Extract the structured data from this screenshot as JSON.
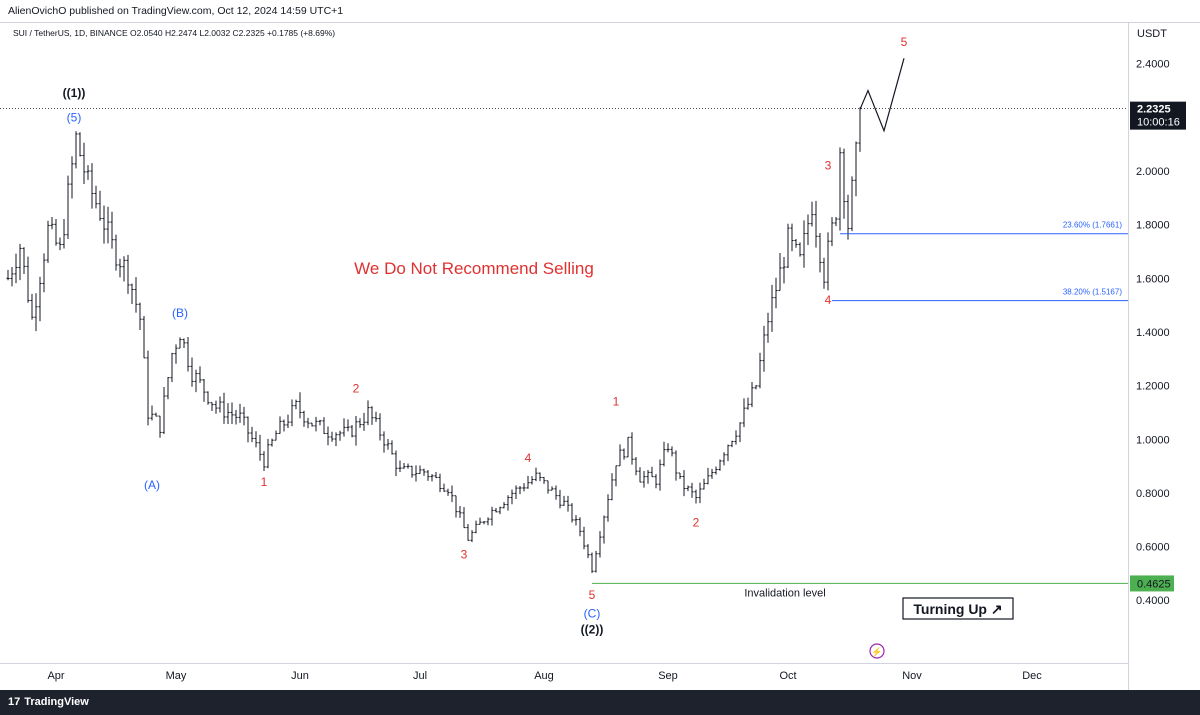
{
  "header": {
    "published_text": "AlienOvichO published on TradingView.com, Oct 12, 2024 14:59 UTC+1"
  },
  "symbol_info": "SUI / TetherUS, 1D, BINANCE  O2.0540  H2.2474  L2.0032  C2.2325  +0.1785 (+8.69%)",
  "footer": {
    "logo_text": "TradingView",
    "logo_icon": "tradingview-logo-icon"
  },
  "colors": {
    "wave_red": "#e03131",
    "wave_blue": "#2962ff",
    "fib_line": "#2962ff",
    "invalidation": "#4caf50",
    "price_label_bg": "#131722"
  },
  "chart_data": {
    "type": "ohlc",
    "title": "SUI / TetherUS, 1D, BINANCE",
    "currency": "USDT",
    "ylim": [
      0.36,
      2.55
    ],
    "y_ticks": [
      {
        "value": 2.4,
        "label": "2.4000"
      },
      {
        "value": 2.0,
        "label": "2.0000"
      },
      {
        "value": 1.8,
        "label": "1.8000"
      },
      {
        "value": 1.6,
        "label": "1.6000"
      },
      {
        "value": 1.4,
        "label": "1.4000"
      },
      {
        "value": 1.2,
        "label": "1.2000"
      },
      {
        "value": 1.0,
        "label": "1.0000"
      },
      {
        "value": 0.8,
        "label": "0.8000"
      },
      {
        "value": 0.6,
        "label": "0.6000"
      },
      {
        "value": 0.4,
        "label": "0.4000"
      }
    ],
    "x_ticks": [
      {
        "day": 12,
        "label": "Apr"
      },
      {
        "day": 42,
        "label": "May"
      },
      {
        "day": 73,
        "label": "Jun"
      },
      {
        "day": 103,
        "label": "Jul"
      },
      {
        "day": 134,
        "label": "Aug"
      },
      {
        "day": 165,
        "label": "Sep"
      },
      {
        "day": 195,
        "label": "Oct"
      },
      {
        "day": 226,
        "label": "Nov"
      },
      {
        "day": 256,
        "label": "Dec"
      }
    ],
    "current_price": {
      "value": 2.2325,
      "label": "2.2325",
      "countdown": "10:00:16"
    },
    "invalidation": {
      "value": 0.4625,
      "label": "0.4625",
      "text": "Invalidation level",
      "from_day": 146
    },
    "fib_levels": [
      {
        "value": 1.7661,
        "label": "23.60% (1.7661)",
        "from_day": 208
      },
      {
        "value": 1.5167,
        "label": "38.20% (1.5167)",
        "from_day": 206
      }
    ],
    "anchors": [
      {
        "day": 0,
        "price": 1.6
      },
      {
        "day": 3,
        "price": 1.72
      },
      {
        "day": 6,
        "price": 1.45
      },
      {
        "day": 10,
        "price": 1.78
      },
      {
        "day": 13,
        "price": 1.7
      },
      {
        "day": 17,
        "price": 2.12
      },
      {
        "day": 20,
        "price": 1.95
      },
      {
        "day": 23,
        "price": 1.85
      },
      {
        "day": 26,
        "price": 1.72
      },
      {
        "day": 30,
        "price": 1.62
      },
      {
        "day": 33,
        "price": 1.45
      },
      {
        "day": 35,
        "price": 1.1
      },
      {
        "day": 38,
        "price": 1.05
      },
      {
        "day": 41,
        "price": 1.32
      },
      {
        "day": 43,
        "price": 1.4
      },
      {
        "day": 46,
        "price": 1.25
      },
      {
        "day": 52,
        "price": 1.12
      },
      {
        "day": 58,
        "price": 1.08
      },
      {
        "day": 64,
        "price": 0.92
      },
      {
        "day": 67,
        "price": 1.02
      },
      {
        "day": 72,
        "price": 1.12
      },
      {
        "day": 76,
        "price": 1.06
      },
      {
        "day": 80,
        "price": 1.03
      },
      {
        "day": 85,
        "price": 1.02
      },
      {
        "day": 90,
        "price": 1.1
      },
      {
        "day": 94,
        "price": 1.0
      },
      {
        "day": 98,
        "price": 0.88
      },
      {
        "day": 104,
        "price": 0.88
      },
      {
        "day": 110,
        "price": 0.82
      },
      {
        "day": 115,
        "price": 0.63
      },
      {
        "day": 120,
        "price": 0.72
      },
      {
        "day": 126,
        "price": 0.8
      },
      {
        "day": 132,
        "price": 0.86
      },
      {
        "day": 135,
        "price": 0.82
      },
      {
        "day": 139,
        "price": 0.76
      },
      {
        "day": 143,
        "price": 0.66
      },
      {
        "day": 146,
        "price": 0.52
      },
      {
        "day": 149,
        "price": 0.72
      },
      {
        "day": 152,
        "price": 0.92
      },
      {
        "day": 155,
        "price": 0.98
      },
      {
        "day": 158,
        "price": 0.86
      },
      {
        "day": 162,
        "price": 0.85
      },
      {
        "day": 165,
        "price": 0.98
      },
      {
        "day": 168,
        "price": 0.84
      },
      {
        "day": 172,
        "price": 0.78
      },
      {
        "day": 175,
        "price": 0.85
      },
      {
        "day": 179,
        "price": 0.96
      },
      {
        "day": 183,
        "price": 1.06
      },
      {
        "day": 187,
        "price": 1.2
      },
      {
        "day": 190,
        "price": 1.45
      },
      {
        "day": 193,
        "price": 1.62
      },
      {
        "day": 195,
        "price": 1.74
      },
      {
        "day": 198,
        "price": 1.66
      },
      {
        "day": 201,
        "price": 1.88
      },
      {
        "day": 204,
        "price": 1.62
      },
      {
        "day": 207,
        "price": 1.86
      },
      {
        "day": 208,
        "price": 2.08
      },
      {
        "day": 210,
        "price": 1.8
      },
      {
        "day": 212,
        "price": 2.05
      },
      {
        "day": 213,
        "price": 2.2325
      }
    ],
    "projection": [
      {
        "day": 213,
        "price": 2.23
      },
      {
        "day": 215,
        "price": 2.3
      },
      {
        "day": 219,
        "price": 2.15
      },
      {
        "day": 224,
        "price": 2.42
      }
    ],
    "wave_labels": [
      {
        "text": "((1))",
        "day": 16.5,
        "price": 2.29,
        "color": "black"
      },
      {
        "text": "(5)",
        "day": 16.5,
        "price": 2.2,
        "color": "blue"
      },
      {
        "text": "(A)",
        "day": 36,
        "price": 0.83,
        "color": "blue"
      },
      {
        "text": "(B)",
        "day": 43,
        "price": 1.47,
        "color": "blue"
      },
      {
        "text": "1",
        "day": 64,
        "price": 0.84,
        "color": "red"
      },
      {
        "text": "2",
        "day": 87,
        "price": 1.19,
        "color": "red"
      },
      {
        "text": "3",
        "day": 114,
        "price": 0.57,
        "color": "red"
      },
      {
        "text": "4",
        "day": 130,
        "price": 0.93,
        "color": "red"
      },
      {
        "text": "5",
        "day": 146,
        "price": 0.42,
        "color": "red"
      },
      {
        "text": "(C)",
        "day": 146,
        "price": 0.35,
        "color": "blue"
      },
      {
        "text": "((2))",
        "day": 146,
        "price": 0.29,
        "color": "black"
      },
      {
        "text": "1",
        "day": 152,
        "price": 1.14,
        "color": "red"
      },
      {
        "text": "2",
        "day": 172,
        "price": 0.69,
        "color": "red"
      },
      {
        "text": "3",
        "day": 205,
        "price": 2.02,
        "color": "red"
      },
      {
        "text": "4",
        "day": 205,
        "price": 1.52,
        "color": "red"
      },
      {
        "text": "5",
        "day": 224,
        "price": 2.48,
        "color": "red"
      }
    ],
    "annotations": {
      "main_text": "We Do Not Recommend Selling",
      "turning_text": "Turning Up",
      "turning_arrow": "↗"
    }
  }
}
